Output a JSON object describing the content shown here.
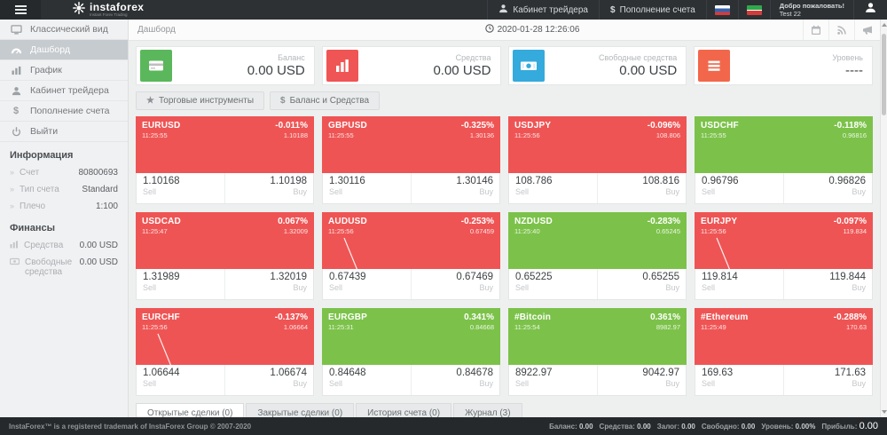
{
  "header": {
    "logo_title": "instaforex",
    "logo_subtitle": "Instant Forex Trading",
    "trader_cabinet_label": "Кабинет трейдера",
    "deposit_prefix": "$",
    "deposit_label": "Пополнение счета",
    "welcome_title": "Добро пожаловать!",
    "welcome_user": "Test 22"
  },
  "sidebar": {
    "items": [
      {
        "id": "classic-view",
        "icon": "monitor",
        "label": "Классический вид",
        "active": false
      },
      {
        "id": "dashboard",
        "icon": "gauge",
        "label": "Дашборд",
        "active": true
      },
      {
        "id": "chart",
        "icon": "chart",
        "label": "График",
        "active": false
      },
      {
        "id": "trader-cabinet",
        "icon": "user",
        "label": "Кабинет трейдера",
        "active": false
      },
      {
        "id": "deposit",
        "icon": "dollar",
        "label": "Пополнение счета",
        "active": false
      },
      {
        "id": "logout",
        "icon": "power",
        "label": "Выйти",
        "active": false
      }
    ],
    "info_title": "Информация",
    "info_rows": [
      {
        "label": "Счет",
        "value": "80800693"
      },
      {
        "label": "Тип счета",
        "value": "Standard"
      },
      {
        "label": "Плечо",
        "value": "1:100"
      }
    ],
    "finance_title": "Финансы",
    "finance_rows": [
      {
        "icon": "mini-chart",
        "label": "Средства",
        "value": "0.00 USD"
      },
      {
        "icon": "mini-cash",
        "label": "Свободные средства",
        "value": "0.00 USD"
      }
    ]
  },
  "topbar": {
    "breadcrumb": "Дашборд",
    "datetime": "2020-01-28 12:26:06"
  },
  "cards": [
    {
      "label": "Баланс",
      "value": "0.00 USD",
      "icon": "credit-card",
      "color": "#5bb75b"
    },
    {
      "label": "Средства",
      "value": "0.00 USD",
      "icon": "bar-chart",
      "color": "#f05555"
    },
    {
      "label": "Свободные средства",
      "value": "0.00 USD",
      "icon": "banknote",
      "color": "#35aadc"
    },
    {
      "label": "Уровень",
      "value": "----",
      "icon": "list",
      "color": "#f2674b"
    }
  ],
  "toolbar": {
    "instruments_label": "Торговые инструменты",
    "balance_label": "Баланс и Средства"
  },
  "tile_labels": {
    "sell": "Sell",
    "buy": "Buy"
  },
  "tiles": [
    {
      "symbol": "EURUSD",
      "time": "11:25:55",
      "change": "-0.011%",
      "price": "1.10188",
      "sell": "1.10168",
      "buy": "1.10198",
      "color": "red",
      "spark": false
    },
    {
      "symbol": "GBPUSD",
      "time": "11:25:55",
      "change": "-0.325%",
      "price": "1.30136",
      "sell": "1.30116",
      "buy": "1.30146",
      "color": "red",
      "spark": false
    },
    {
      "symbol": "USDJPY",
      "time": "11:25:56",
      "change": "-0.096%",
      "price": "108.806",
      "sell": "108.786",
      "buy": "108.816",
      "color": "red",
      "spark": false
    },
    {
      "symbol": "USDCHF",
      "time": "11:25:55",
      "change": "-0.118%",
      "price": "0.96816",
      "sell": "0.96796",
      "buy": "0.96826",
      "color": "green",
      "spark": false
    },
    {
      "symbol": "USDCAD",
      "time": "11:25:47",
      "change": "0.067%",
      "price": "1.32009",
      "sell": "1.31989",
      "buy": "1.32019",
      "color": "red",
      "spark": false
    },
    {
      "symbol": "AUDUSD",
      "time": "11:25:56",
      "change": "-0.253%",
      "price": "0.67459",
      "sell": "0.67439",
      "buy": "0.67469",
      "color": "red",
      "spark": true
    },
    {
      "symbol": "NZDUSD",
      "time": "11:25:40",
      "change": "-0.283%",
      "price": "0.65245",
      "sell": "0.65225",
      "buy": "0.65255",
      "color": "green",
      "spark": false
    },
    {
      "symbol": "EURJPY",
      "time": "11:25:56",
      "change": "-0.097%",
      "price": "119.834",
      "sell": "119.814",
      "buy": "119.844",
      "color": "red",
      "spark": true
    },
    {
      "symbol": "EURCHF",
      "time": "11:25:56",
      "change": "-0.137%",
      "price": "1.06664",
      "sell": "1.06644",
      "buy": "1.06674",
      "color": "red",
      "spark": true
    },
    {
      "symbol": "EURGBP",
      "time": "11:25:31",
      "change": "0.341%",
      "price": "0.84668",
      "sell": "0.84648",
      "buy": "0.84678",
      "color": "green",
      "spark": false
    },
    {
      "symbol": "#Bitcoin",
      "time": "11:25:54",
      "change": "0.361%",
      "price": "8982.97",
      "sell": "8922.97",
      "buy": "9042.97",
      "color": "green",
      "spark": false
    },
    {
      "symbol": "#Ethereum",
      "time": "11:25:49",
      "change": "-0.288%",
      "price": "170.63",
      "sell": "169.63",
      "buy": "171.63",
      "color": "red",
      "spark": false
    }
  ],
  "tabs": [
    {
      "label": "Открытые сделки (0)",
      "active": true
    },
    {
      "label": "Закрытые сделки (0)",
      "active": false
    },
    {
      "label": "История счета (0)",
      "active": false
    },
    {
      "label": "Журнал (3)",
      "active": false
    }
  ],
  "footer": {
    "copyright": "InstaForex™ is a registered trademark of InstaForex Group © 2007-2020",
    "stats": [
      {
        "label": "Баланс:",
        "value": "0.00",
        "big": false
      },
      {
        "label": "Средства:",
        "value": "0.00",
        "big": false
      },
      {
        "label": "Залог:",
        "value": "0.00",
        "big": false
      },
      {
        "label": "Свободно:",
        "value": "0.00",
        "big": false
      },
      {
        "label": "Уровень:",
        "value": "0.00%",
        "big": false
      },
      {
        "label": "Прибыль:",
        "value": "0.00",
        "big": true
      }
    ]
  },
  "colors": {
    "tile_red": "#ef5454",
    "tile_green": "#7cc24a",
    "header_bg": "#2d3134"
  }
}
